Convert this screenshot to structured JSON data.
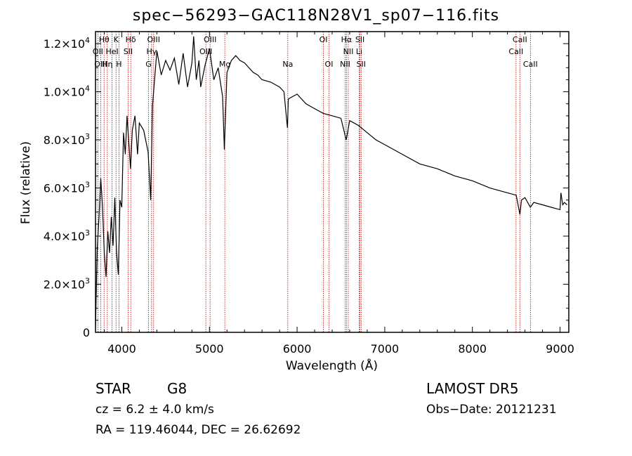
{
  "title": "spec−56293−GAC118N28V1_sp07−116.fits",
  "info": {
    "class": "STAR",
    "subclass": "G8",
    "redshift": "cz = 6.2 ± 4.0 km/s",
    "coords": "RA = 119.46044, DEC =  26.62692",
    "survey": "LAMOST  DR5",
    "obsdate": "Obs−Date: 20121231"
  },
  "colors": {
    "line": "#000000",
    "marker": "#c00000",
    "background": "#ffffff"
  },
  "chart_data": {
    "type": "line",
    "xlabel": "Wavelength (Å)",
    "ylabel": "Flux (relative)",
    "xlim": [
      3700,
      9100
    ],
    "ylim": [
      0,
      12500
    ],
    "x_ticks": [
      4000,
      5000,
      6000,
      7000,
      8000,
      9000
    ],
    "y_ticks": [
      {
        "value": 0,
        "label": "0"
      },
      {
        "value": 2000,
        "label": "2.0×10^3"
      },
      {
        "value": 4000,
        "label": "4.0×10^3"
      },
      {
        "value": 6000,
        "label": "6.0×10^3"
      },
      {
        "value": 8000,
        "label": "8.0×10^3"
      },
      {
        "value": 10000,
        "label": "1.0×10^4"
      },
      {
        "value": 12000,
        "label": "1.2×10^4"
      }
    ],
    "spectrum": {
      "x": [
        3700,
        3720,
        3740,
        3760,
        3780,
        3800,
        3820,
        3840,
        3860,
        3880,
        3900,
        3920,
        3940,
        3960,
        3980,
        4000,
        4020,
        4040,
        4060,
        4080,
        4100,
        4120,
        4150,
        4180,
        4200,
        4250,
        4300,
        4330,
        4350,
        4400,
        4450,
        4500,
        4550,
        4600,
        4650,
        4700,
        4750,
        4800,
        4820,
        4850,
        4880,
        4900,
        4950,
        5000,
        5050,
        5100,
        5150,
        5170,
        5200,
        5250,
        5300,
        5350,
        5400,
        5450,
        5500,
        5550,
        5600,
        5700,
        5800,
        5850,
        5890,
        5900,
        5950,
        6000,
        6100,
        6200,
        6300,
        6400,
        6500,
        6560,
        6600,
        6700,
        6800,
        6900,
        7000,
        7200,
        7400,
        7600,
        7800,
        8000,
        8200,
        8400,
        8500,
        8542,
        8560,
        8600,
        8662,
        8700,
        8800,
        8900,
        9000,
        9010,
        9030,
        9050,
        9080
      ],
      "y": [
        200,
        3500,
        4800,
        6400,
        5200,
        3300,
        2300,
        4200,
        3300,
        4800,
        3600,
        5600,
        3300,
        2400,
        5500,
        5200,
        8300,
        7400,
        9000,
        7900,
        6800,
        8400,
        9000,
        7400,
        8700,
        8400,
        7500,
        5500,
        9400,
        11700,
        10700,
        11300,
        10900,
        11400,
        10300,
        11600,
        10200,
        11200,
        12300,
        10500,
        11300,
        10200,
        11100,
        11800,
        10500,
        11000,
        9800,
        7600,
        10800,
        11300,
        11500,
        11300,
        11200,
        11000,
        10800,
        10700,
        10500,
        10400,
        10200,
        10000,
        8500,
        9700,
        9800,
        9900,
        9500,
        9300,
        9100,
        9000,
        8900,
        8000,
        8800,
        8600,
        8300,
        8000,
        7800,
        7400,
        7000,
        6800,
        6500,
        6300,
        6000,
        5800,
        5700,
        4900,
        5500,
        5600,
        5200,
        5400,
        5300,
        5200,
        5100,
        5800,
        5300,
        5400,
        5300
      ]
    },
    "lines": [
      {
        "label": "Hθ",
        "wavelength": 3798,
        "row": 0
      },
      {
        "label": "K",
        "wavelength": 3934,
        "row": 0
      },
      {
        "label": "Hδ",
        "wavelength": 4102,
        "row": 0
      },
      {
        "label": "OIII",
        "wavelength": 4363,
        "row": 0
      },
      {
        "label": "OIII",
        "wavelength": 5007,
        "row": 0
      },
      {
        "label": "OI",
        "wavelength": 6300,
        "row": 0
      },
      {
        "label": "Hα",
        "wavelength": 6563,
        "row": 0
      },
      {
        "label": "SII",
        "wavelength": 6717,
        "row": 0
      },
      {
        "label": "CaII",
        "wavelength": 8542,
        "row": 0
      },
      {
        "label": "OII",
        "wavelength": 3727,
        "row": 1
      },
      {
        "label": "HeI",
        "wavelength": 3889,
        "row": 1
      },
      {
        "label": "SII",
        "wavelength": 4072,
        "row": 1
      },
      {
        "label": "Hγ",
        "wavelength": 4340,
        "row": 1
      },
      {
        "label": "OIII",
        "wavelength": 4959,
        "row": 1
      },
      {
        "label": "NII",
        "wavelength": 6584,
        "row": 1
      },
      {
        "label": "Li",
        "wavelength": 6708,
        "row": 1
      },
      {
        "label": "CaII",
        "wavelength": 8498,
        "row": 1
      },
      {
        "label": "OIII",
        "wavelength": 3760,
        "row": 2
      },
      {
        "label": "Hη",
        "wavelength": 3835,
        "row": 2
      },
      {
        "label": "H",
        "wavelength": 3968,
        "row": 2
      },
      {
        "label": "G",
        "wavelength": 4305,
        "row": 2
      },
      {
        "label": "Mg",
        "wavelength": 5175,
        "row": 2
      },
      {
        "label": "Na",
        "wavelength": 5894,
        "row": 2
      },
      {
        "label": "OI",
        "wavelength": 6364,
        "row": 2
      },
      {
        "label": "NII",
        "wavelength": 6548,
        "row": 2
      },
      {
        "label": "SII",
        "wavelength": 6731,
        "row": 2
      },
      {
        "label": "CaII",
        "wavelength": 8662,
        "row": 2
      }
    ]
  }
}
